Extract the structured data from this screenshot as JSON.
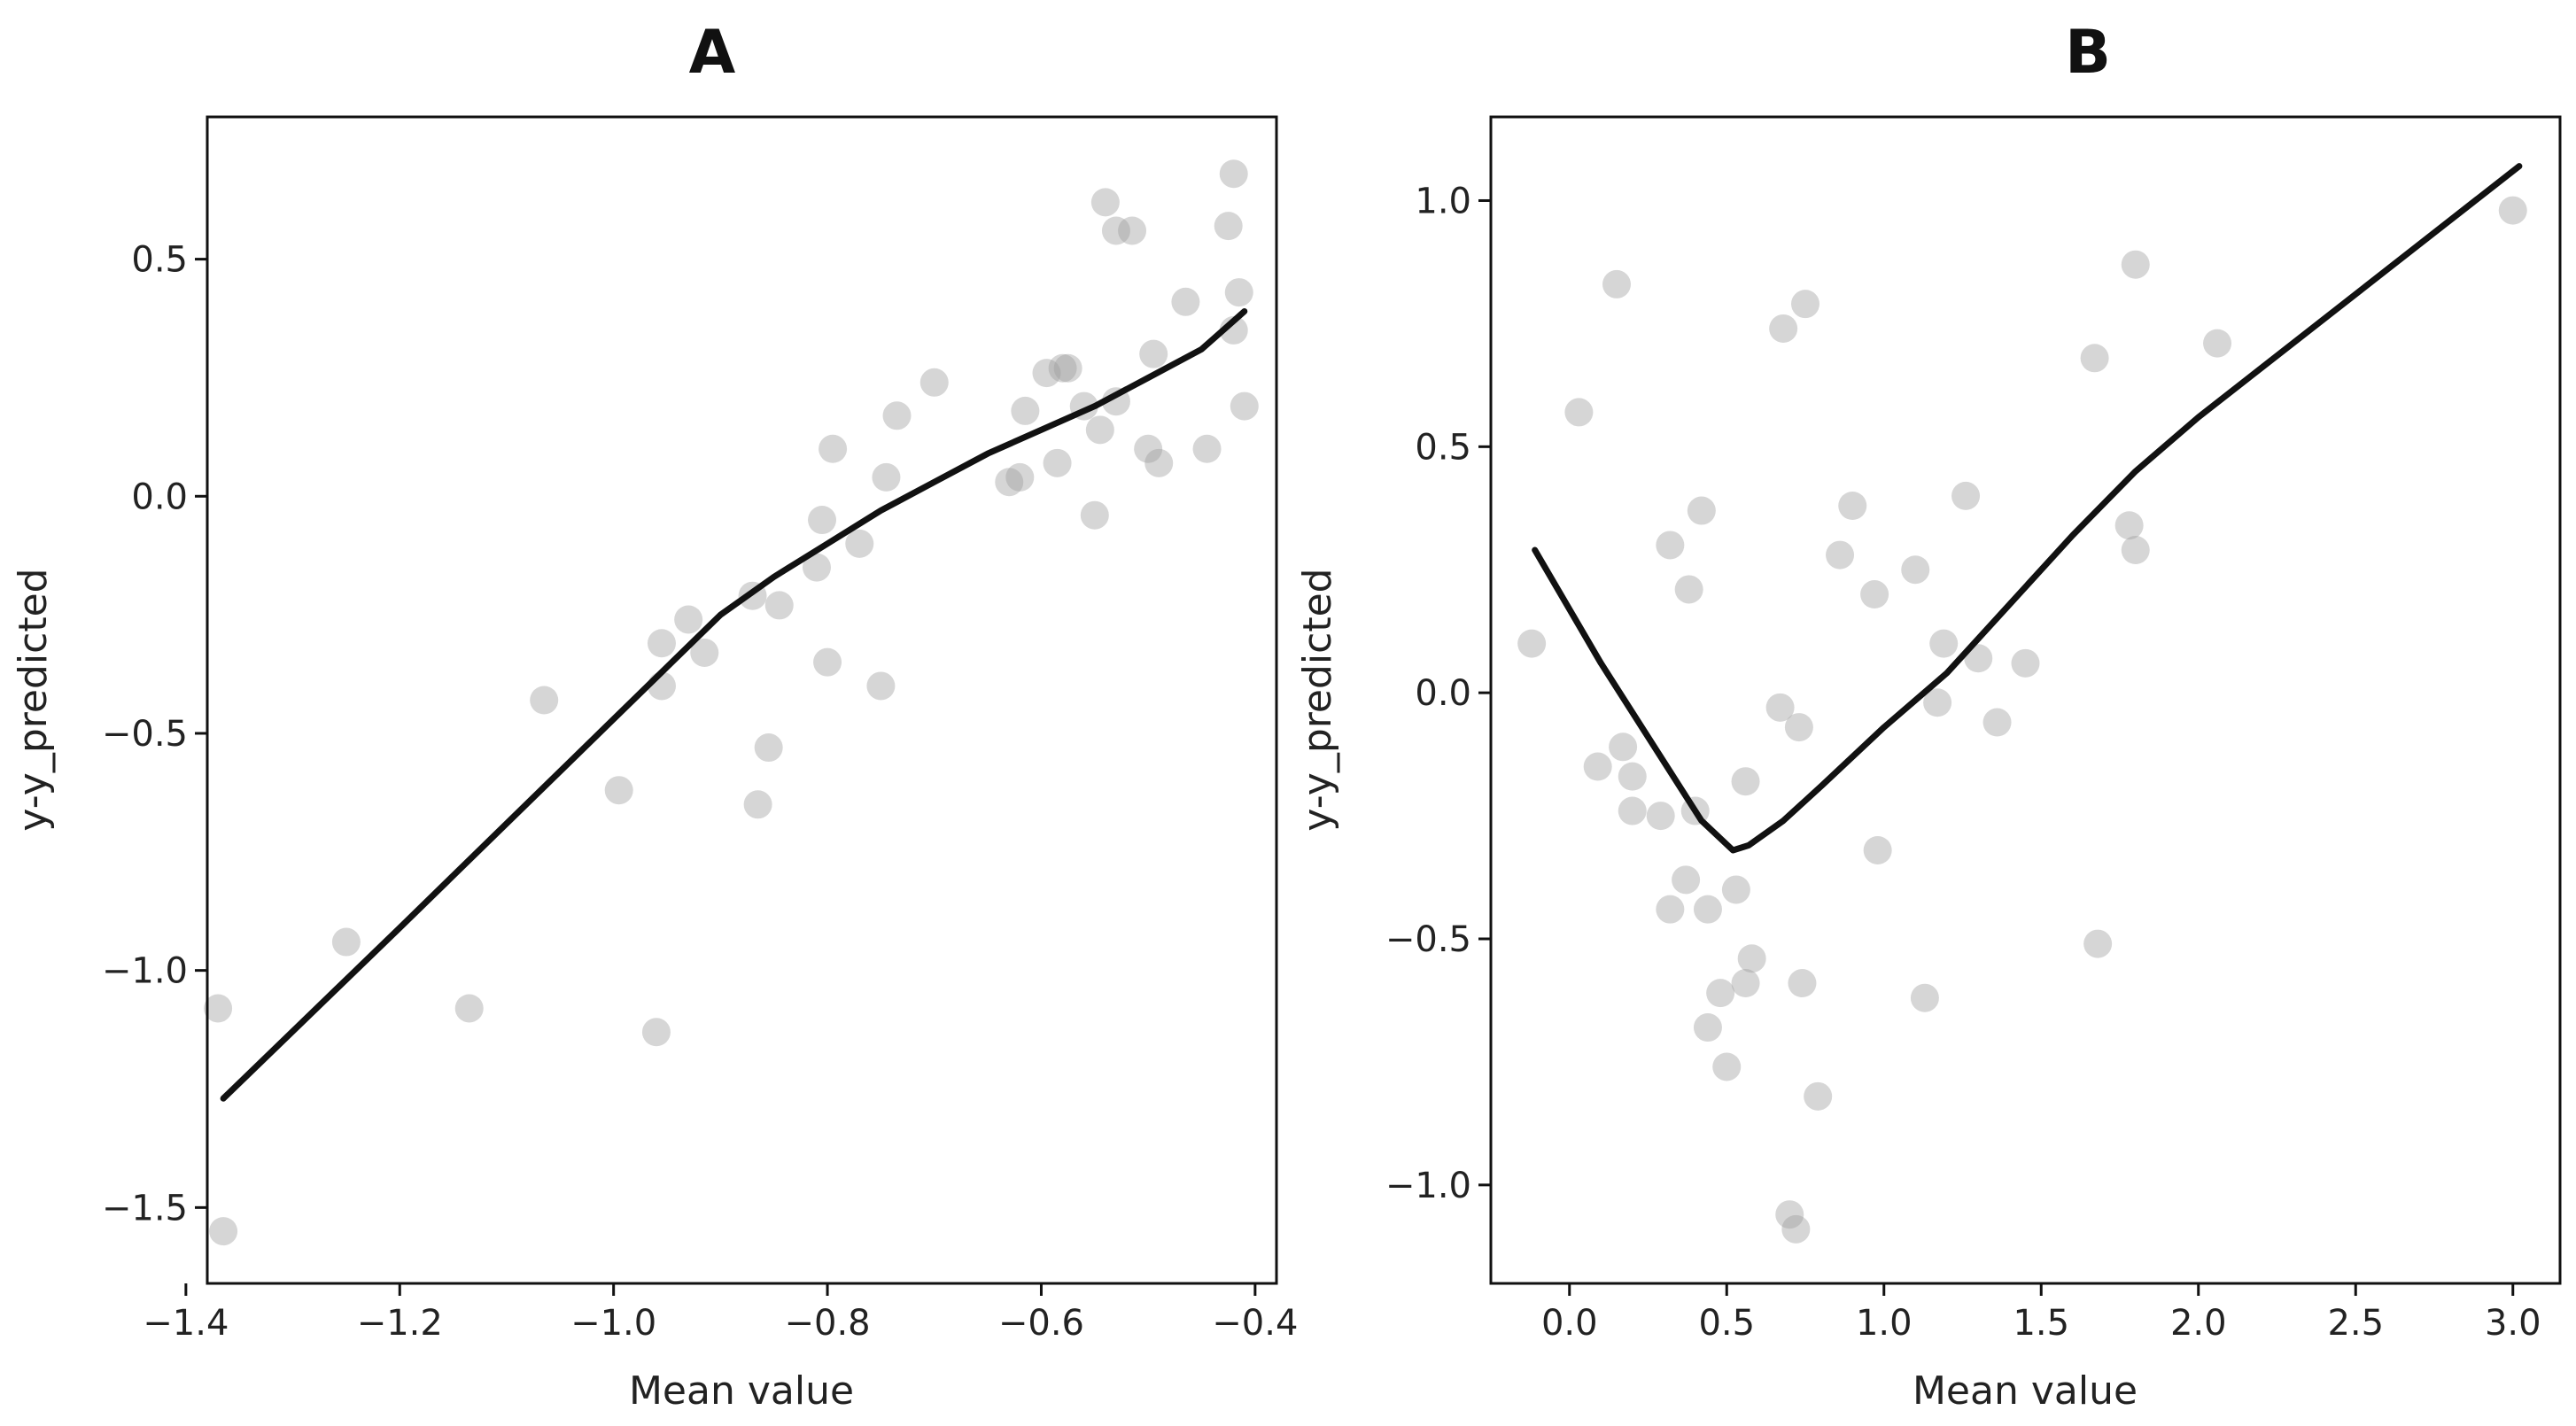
{
  "chart_data": [
    {
      "type": "scatter",
      "title": "A",
      "xlabel": "Mean value",
      "ylabel": "y-y_predicted",
      "xlim": [
        -1.38,
        -0.38
      ],
      "ylim": [
        -1.66,
        0.8
      ],
      "xticks": [
        -1.4,
        -1.2,
        -1.0,
        -0.8,
        -0.6,
        -0.4
      ],
      "xtick_labels": [
        "−1.4",
        "−1.2",
        "−1.0",
        "−0.8",
        "−0.6",
        "−0.4"
      ],
      "yticks": [
        -1.5,
        -1.0,
        -0.5,
        0.0,
        0.5
      ],
      "ytick_labels": [
        "−1.5",
        "−1.0",
        "−0.5",
        "0.0",
        "0.5"
      ],
      "points": {
        "x": [
          -1.37,
          -1.365,
          -1.25,
          -1.135,
          -1.065,
          -0.995,
          -0.96,
          -0.955,
          -0.955,
          -0.93,
          -0.915,
          -0.87,
          -0.865,
          -0.855,
          -0.845,
          -0.81,
          -0.805,
          -0.8,
          -0.795,
          -0.77,
          -0.75,
          -0.745,
          -0.735,
          -0.7,
          -0.63,
          -0.62,
          -0.615,
          -0.595,
          -0.585,
          -0.58,
          -0.575,
          -0.56,
          -0.55,
          -0.545,
          -0.54,
          -0.53,
          -0.53,
          -0.515,
          -0.5,
          -0.495,
          -0.49,
          -0.465,
          -0.445,
          -0.425,
          -0.42,
          -0.42,
          -0.415,
          -0.41
        ],
        "y": [
          -1.08,
          -1.55,
          -0.94,
          -1.08,
          -0.43,
          -0.62,
          -1.13,
          -0.31,
          -0.4,
          -0.26,
          -0.33,
          -0.21,
          -0.65,
          -0.53,
          -0.23,
          -0.15,
          -0.05,
          -0.35,
          0.1,
          -0.1,
          -0.4,
          0.04,
          0.17,
          0.24,
          0.03,
          0.04,
          0.18,
          0.26,
          0.07,
          0.27,
          0.27,
          0.19,
          -0.04,
          0.14,
          0.62,
          0.56,
          0.2,
          0.56,
          0.1,
          0.3,
          0.07,
          0.41,
          0.1,
          0.57,
          0.68,
          0.35,
          0.43,
          0.19
        ]
      },
      "trend": {
        "x": [
          -1.365,
          -1.2,
          -1.0,
          -0.9,
          -0.85,
          -0.8,
          -0.75,
          -0.7,
          -0.65,
          -0.6,
          -0.55,
          -0.5,
          -0.45,
          -0.41
        ],
        "y": [
          -1.27,
          -0.91,
          -0.47,
          -0.25,
          -0.17,
          -0.1,
          -0.03,
          0.03,
          0.09,
          0.14,
          0.19,
          0.25,
          0.31,
          0.39
        ]
      }
    },
    {
      "type": "scatter",
      "title": "B",
      "xlabel": "Mean value",
      "ylabel": "y-y_predicted",
      "xlim": [
        -0.25,
        3.15
      ],
      "ylim": [
        -1.2,
        1.17
      ],
      "xticks": [
        0.0,
        0.5,
        1.0,
        1.5,
        2.0,
        2.5,
        3.0
      ],
      "xtick_labels": [
        "0.0",
        "0.5",
        "1.0",
        "1.5",
        "2.0",
        "2.5",
        "3.0"
      ],
      "yticks": [
        -1.0,
        -0.5,
        0.0,
        0.5,
        1.0
      ],
      "ytick_labels": [
        "−1.0",
        "−0.5",
        "0.0",
        "0.5",
        "1.0"
      ],
      "points": {
        "x": [
          -0.12,
          0.03,
          0.09,
          0.15,
          0.17,
          0.2,
          0.2,
          0.29,
          0.32,
          0.32,
          0.37,
          0.38,
          0.4,
          0.42,
          0.44,
          0.44,
          0.48,
          0.5,
          0.53,
          0.56,
          0.56,
          0.58,
          0.67,
          0.68,
          0.7,
          0.72,
          0.73,
          0.74,
          0.75,
          0.79,
          0.86,
          0.9,
          0.97,
          0.98,
          1.1,
          1.13,
          1.17,
          1.19,
          1.26,
          1.3,
          1.36,
          1.45,
          1.67,
          1.68,
          1.78,
          1.8,
          1.8,
          2.06,
          3.0
        ],
        "y": [
          0.1,
          0.57,
          -0.15,
          0.83,
          -0.11,
          -0.17,
          -0.24,
          -0.25,
          0.3,
          -0.44,
          -0.38,
          0.21,
          -0.24,
          0.37,
          -0.44,
          -0.68,
          -0.61,
          -0.76,
          -0.4,
          -0.59,
          -0.18,
          -0.54,
          -0.03,
          0.74,
          -1.06,
          -1.09,
          -0.07,
          -0.59,
          0.79,
          -0.82,
          0.28,
          0.38,
          0.2,
          -0.32,
          0.25,
          -0.62,
          -0.02,
          0.1,
          0.4,
          0.07,
          -0.06,
          0.06,
          0.68,
          -0.51,
          0.34,
          0.29,
          0.87,
          0.71,
          0.98
        ]
      },
      "trend": {
        "x": [
          -0.11,
          0.1,
          0.3,
          0.42,
          0.52,
          0.57,
          0.68,
          0.8,
          1.0,
          1.2,
          1.4,
          1.6,
          1.8,
          2.0,
          2.5,
          3.02
        ],
        "y": [
          0.29,
          0.06,
          -0.14,
          -0.26,
          -0.32,
          -0.31,
          -0.26,
          -0.19,
          -0.07,
          0.04,
          0.18,
          0.32,
          0.45,
          0.56,
          0.81,
          1.07
        ]
      }
    }
  ]
}
